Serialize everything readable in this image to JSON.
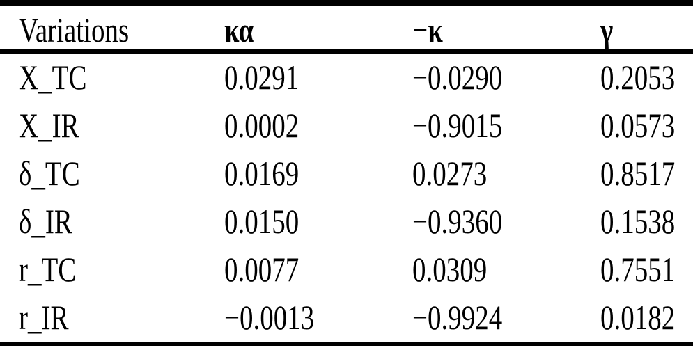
{
  "page": {
    "background_color": "#ffffff",
    "text_color": "#000000",
    "rule_color": "#000000"
  },
  "table": {
    "columns": [
      {
        "label": "Variations"
      },
      {
        "label": "κα"
      },
      {
        "label": "−κ"
      },
      {
        "label": "γ"
      }
    ],
    "rows": [
      {
        "label": "X_TC",
        "values": [
          "0.0291",
          "−0.0290",
          "0.2053"
        ]
      },
      {
        "label": "X_IR",
        "values": [
          "0.0002",
          "−0.9015",
          "0.0573"
        ]
      },
      {
        "label": "δ_TC",
        "values": [
          "0.0169",
          "0.0273",
          "0.8517"
        ]
      },
      {
        "label": "δ_IR",
        "values": [
          "0.0150",
          "−0.9360",
          "0.1538"
        ]
      },
      {
        "label": "r_TC",
        "values": [
          "0.0077",
          "0.0309",
          "0.7551"
        ]
      },
      {
        "label": "r_IR",
        "values": [
          "−0.0013",
          "−0.9924",
          "0.0182"
        ]
      }
    ]
  }
}
